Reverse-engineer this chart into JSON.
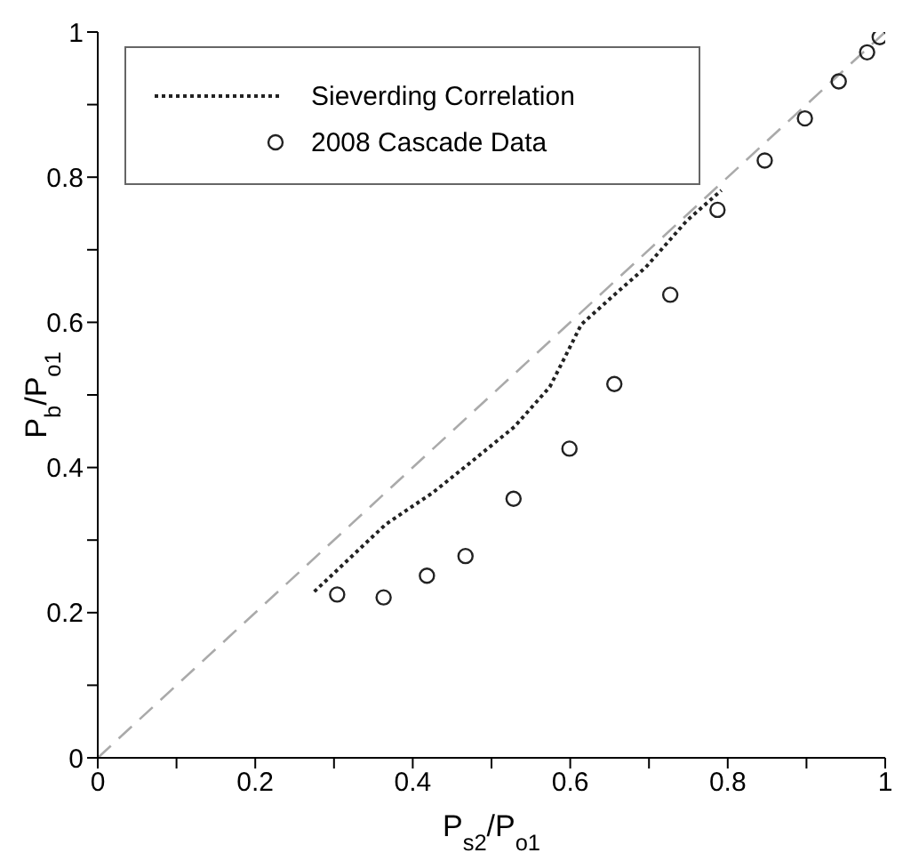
{
  "chart_data": {
    "type": "line",
    "xlabel": "P$_{s2}$/P$_{o1}$",
    "ylabel": "P$_{b}$/P$_{o1}$",
    "xlim": [
      0,
      1
    ],
    "ylim": [
      0,
      1
    ],
    "xticks": [
      0,
      {
        "value": 0.1,
        "label": null
      },
      0.2,
      {
        "value": 0.3,
        "label": null
      },
      0.4,
      {
        "value": 0.5,
        "label": null
      },
      0.6,
      {
        "value": 0.7,
        "label": null
      },
      0.8,
      {
        "value": 0.9,
        "label": null
      },
      1
    ],
    "yticks": [
      0,
      {
        "value": 0.1,
        "label": null
      },
      0.2,
      {
        "value": 0.3,
        "label": null
      },
      0.4,
      {
        "value": 0.5,
        "label": null
      },
      0.6,
      {
        "value": 0.7,
        "label": null
      },
      0.8,
      {
        "value": 0.9,
        "label": null
      },
      1
    ],
    "grid": false,
    "legend": "top left",
    "series": [
      {
        "type": "line",
        "color": "#aaaaaa",
        "line_style": "dashed",
        "marker": "none",
        "x": [
          0,
          1
        ],
        "values": [
          0,
          1
        ]
      },
      {
        "type": "line",
        "name": "Sieverding Correlation",
        "color": "#222222",
        "line_style": "dotted",
        "marker": "none",
        "x": [
          0.275,
          0.366,
          0.425,
          0.47,
          0.529,
          0.574,
          0.596,
          0.614,
          0.655,
          0.696,
          0.748,
          0.792
        ],
        "values": [
          0.229,
          0.322,
          0.365,
          0.404,
          0.456,
          0.511,
          0.558,
          0.597,
          0.637,
          0.676,
          0.74,
          0.782
        ]
      },
      {
        "type": "scatter",
        "name": "2008 Cascade Data",
        "color": "#222222",
        "marker": "circle",
        "x": [
          0.304,
          0.363,
          0.418,
          0.467,
          0.528,
          0.599,
          0.656,
          0.727,
          0.787,
          0.847,
          0.898,
          0.941,
          0.977,
          0.993
        ],
        "values": [
          0.225,
          0.221,
          0.251,
          0.278,
          0.357,
          0.426,
          0.515,
          0.638,
          0.755,
          0.823,
          0.881,
          0.932,
          0.972,
          0.993
        ]
      }
    ]
  }
}
